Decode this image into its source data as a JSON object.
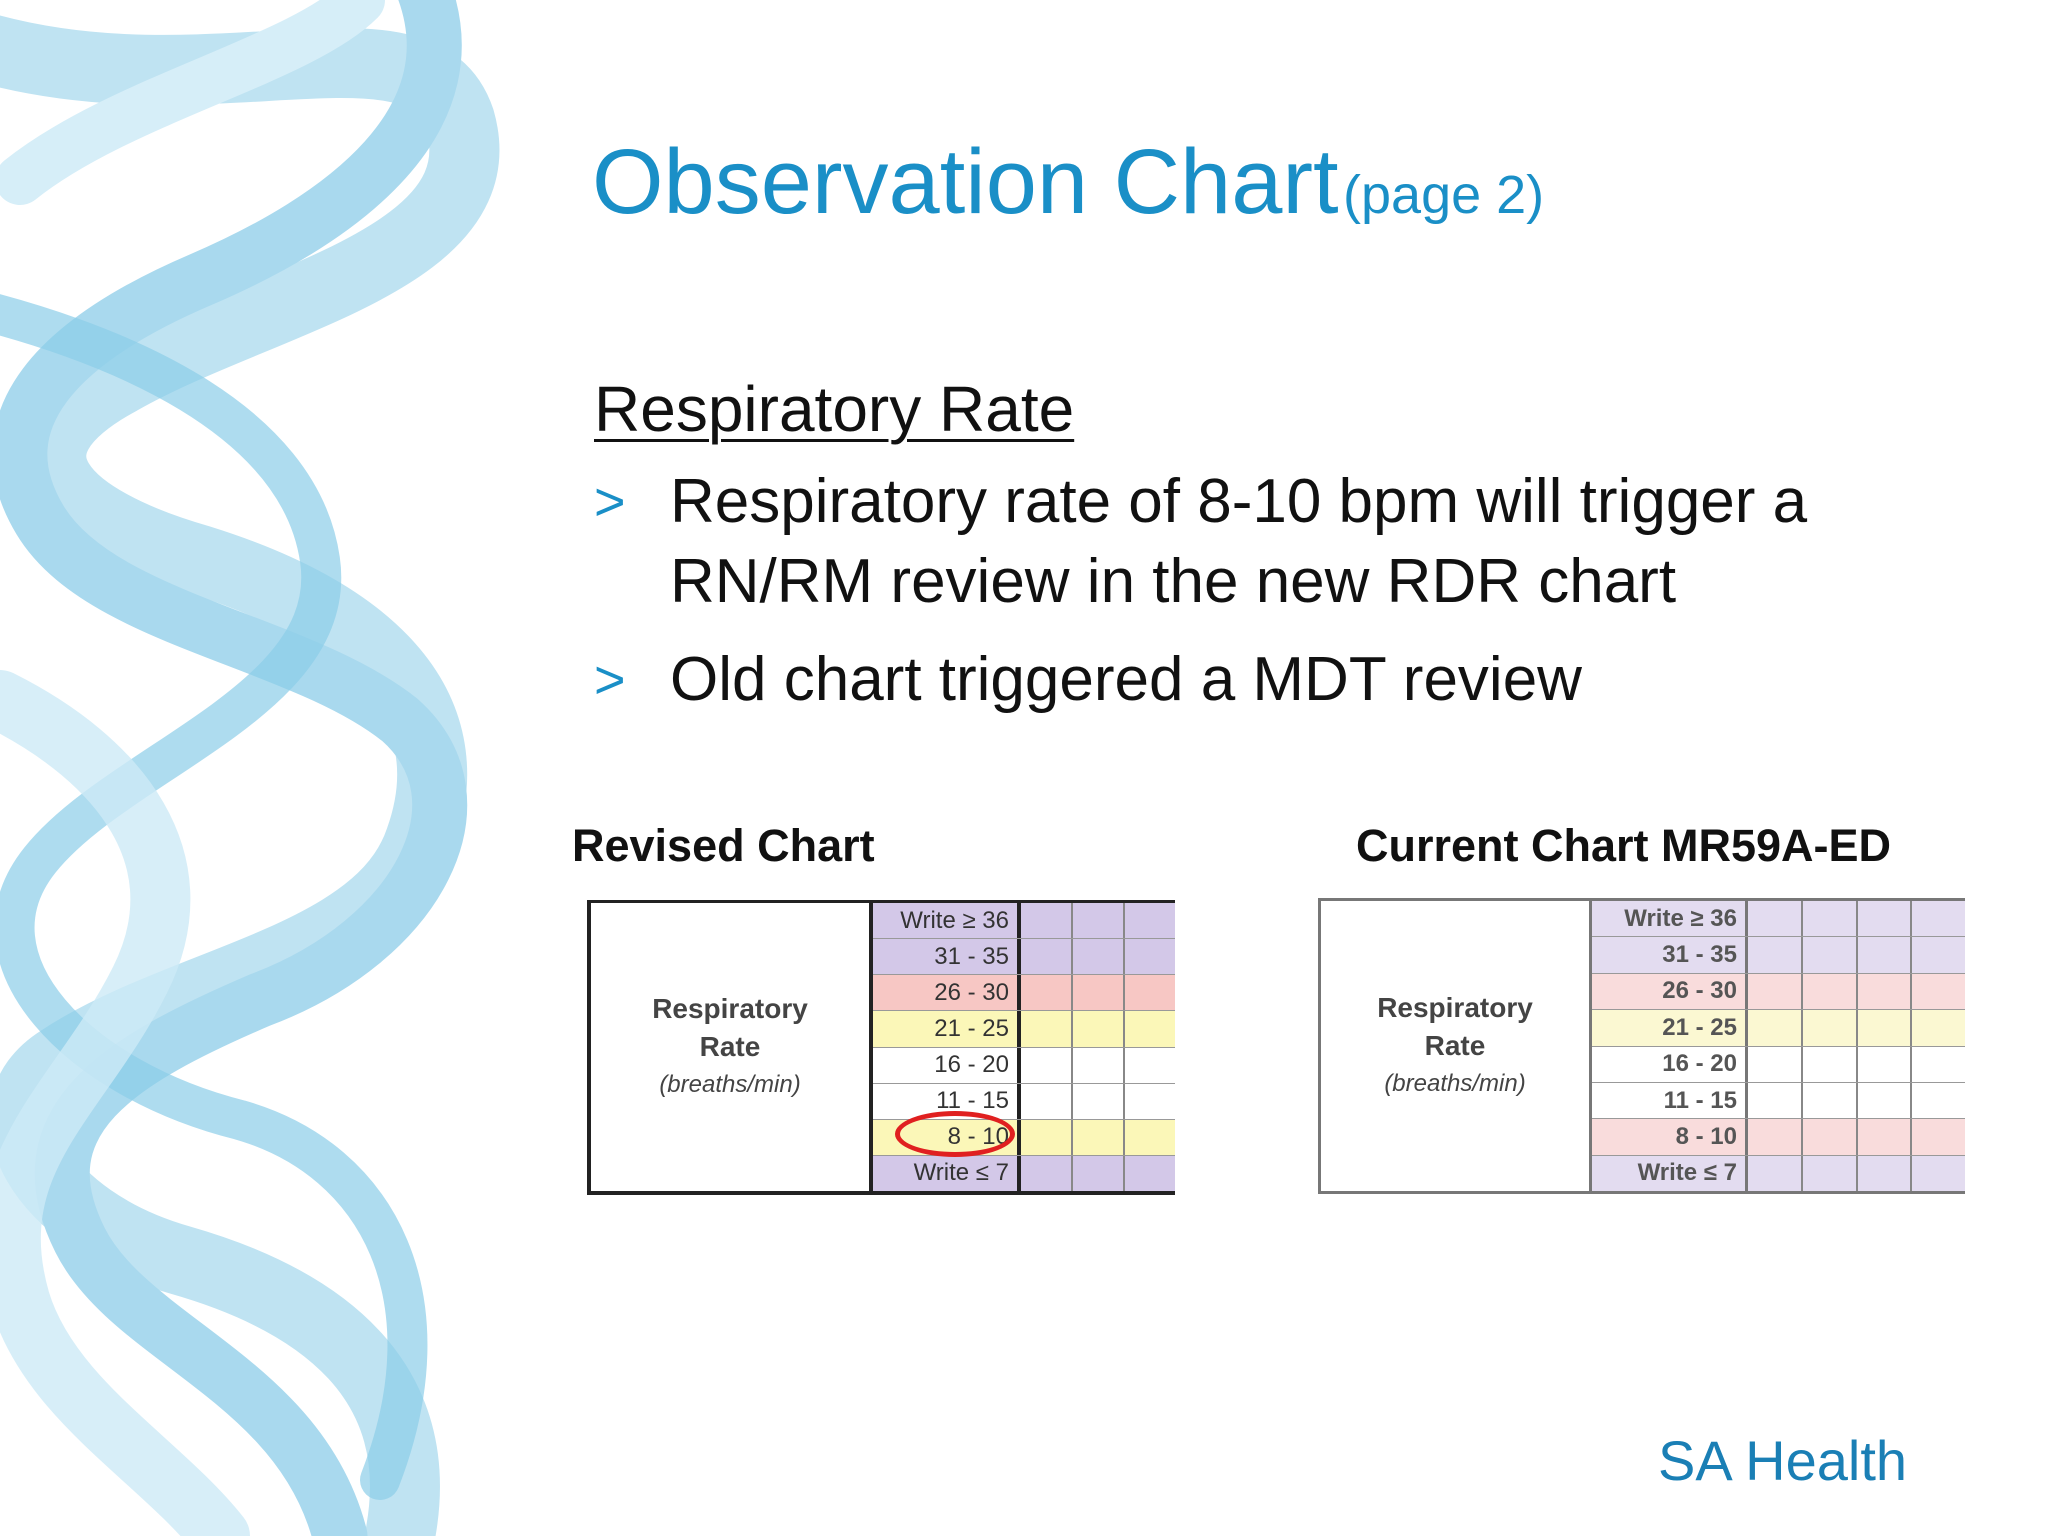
{
  "slide": {
    "title": "Observation Chart",
    "title_suffix": "(page 2)",
    "heading": "Respiratory Rate",
    "bullet_marker": ">",
    "bullets": [
      "Respiratory rate of 8-10 bpm will trigger a RN/RM review in the new RDR chart",
      "Old chart triggered a MDT review"
    ],
    "footer": "SA Health",
    "accent_color": "#1a8fc7"
  },
  "revised_chart": {
    "caption": "Revised Chart",
    "label_line1": "Respiratory",
    "label_line2": "Rate",
    "label_line3": "(breaths/min)",
    "highlighted_range": "8 - 10",
    "highlight_color": "#e02020",
    "rows": [
      {
        "range": "Write ≥ 36",
        "band": "purple"
      },
      {
        "range": "31 - 35",
        "band": "purple"
      },
      {
        "range": "26 - 30",
        "band": "red"
      },
      {
        "range": "21 - 25",
        "band": "yellow"
      },
      {
        "range": "16 - 20",
        "band": "white"
      },
      {
        "range": "11 - 15",
        "band": "white"
      },
      {
        "range": "8 - 10",
        "band": "yellow"
      },
      {
        "range": "Write ≤ 7",
        "band": "purple"
      }
    ]
  },
  "current_chart": {
    "caption": "Current Chart MR59A-ED",
    "label_line1": "Respiratory",
    "label_line2": "Rate",
    "label_line3": "(breaths/min)",
    "rows": [
      {
        "range": "Write ≥ 36",
        "band": "purple"
      },
      {
        "range": "31 - 35",
        "band": "purple"
      },
      {
        "range": "26 - 30",
        "band": "red"
      },
      {
        "range": "21 - 25",
        "band": "yellow"
      },
      {
        "range": "16 - 20",
        "band": "white"
      },
      {
        "range": "11 - 15",
        "band": "white"
      },
      {
        "range": "8 - 10",
        "band": "red"
      },
      {
        "range": "Write ≤ 7",
        "band": "purple"
      }
    ]
  }
}
